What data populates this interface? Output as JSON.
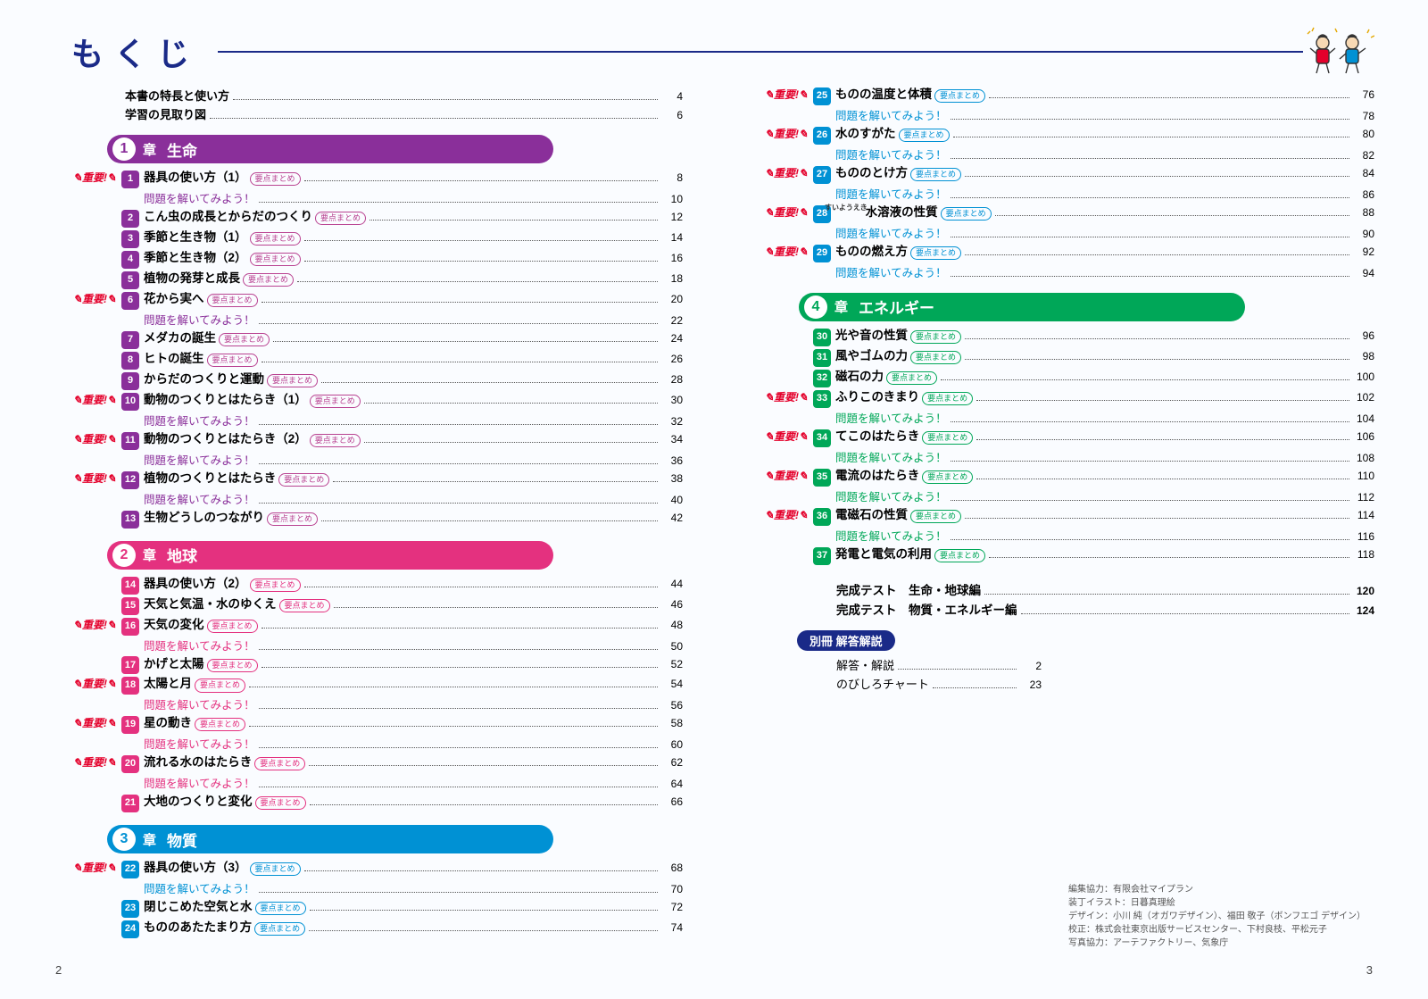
{
  "title": "もくじ",
  "intro": [
    {
      "label": "本書の特長と使い方",
      "page": "4"
    },
    {
      "label": "学習の見取り図",
      "page": "6"
    }
  ],
  "flag_text": "重要!",
  "badge_text": "要点まとめ",
  "practice_text": "問題を解いてみよう！",
  "chapters": [
    {
      "num": "1",
      "kanji": "章",
      "name": "生命",
      "pill_color": "#8a2f9a",
      "bullet_color": "#8a2f9a",
      "badge_color": "#b94291",
      "sub_color": "#8a2f9a",
      "entries": [
        {
          "n": "1",
          "t": "器具の使い方（1）",
          "flag": true,
          "badge": true,
          "page": "8",
          "sub": "10"
        },
        {
          "n": "2",
          "t": "こん虫の成長とからだのつくり",
          "badge": true,
          "page": "12"
        },
        {
          "n": "3",
          "t": "季節と生き物（1）",
          "badge": true,
          "page": "14"
        },
        {
          "n": "4",
          "t": "季節と生き物（2）",
          "badge": true,
          "page": "16"
        },
        {
          "n": "5",
          "t": "植物の発芽と成長",
          "badge": true,
          "page": "18"
        },
        {
          "n": "6",
          "t": "花から実へ",
          "flag": true,
          "badge": true,
          "page": "20",
          "sub": "22"
        },
        {
          "n": "7",
          "t": "メダカの誕生",
          "badge": true,
          "page": "24"
        },
        {
          "n": "8",
          "t": "ヒトの誕生",
          "badge": true,
          "page": "26"
        },
        {
          "n": "9",
          "t": "からだのつくりと運動",
          "badge": true,
          "page": "28"
        },
        {
          "n": "10",
          "t": "動物のつくりとはたらき（1）",
          "flag": true,
          "badge": true,
          "page": "30",
          "sub": "32"
        },
        {
          "n": "11",
          "t": "動物のつくりとはたらき（2）",
          "flag": true,
          "badge": true,
          "page": "34",
          "sub": "36"
        },
        {
          "n": "12",
          "t": "植物のつくりとはたらき",
          "flag": true,
          "badge": true,
          "page": "38",
          "sub": "40"
        },
        {
          "n": "13",
          "t": "生物どうしのつながり",
          "badge": true,
          "page": "42"
        }
      ]
    },
    {
      "num": "2",
      "kanji": "章",
      "name": "地球",
      "pill_color": "#e4317f",
      "bullet_color": "#e4317f",
      "badge_color": "#e4317f",
      "sub_color": "#e4317f",
      "entries": [
        {
          "n": "14",
          "t": "器具の使い方（2）",
          "badge": true,
          "page": "44"
        },
        {
          "n": "15",
          "t": "天気と気温・水のゆくえ",
          "badge": true,
          "page": "46"
        },
        {
          "n": "16",
          "t": "天気の変化",
          "flag": true,
          "badge": true,
          "page": "48",
          "sub": "50"
        },
        {
          "n": "17",
          "t": "かげと太陽",
          "badge": true,
          "page": "52"
        },
        {
          "n": "18",
          "t": "太陽と月",
          "flag": true,
          "badge": true,
          "page": "54",
          "sub": "56"
        },
        {
          "n": "19",
          "t": "星の動き",
          "flag": true,
          "badge": true,
          "page": "58",
          "sub": "60"
        },
        {
          "n": "20",
          "t": "流れる水のはたらき",
          "flag": true,
          "badge": true,
          "page": "62",
          "sub": "64"
        },
        {
          "n": "21",
          "t": "大地のつくりと変化",
          "badge": true,
          "page": "66"
        }
      ]
    },
    {
      "num": "3",
      "kanji": "章",
      "name": "物質",
      "pill_color": "#0091d4",
      "bullet_color": "#0091d4",
      "badge_color": "#0091d4",
      "sub_color": "#0091d4",
      "entries": [
        {
          "n": "22",
          "t": "器具の使い方（3）",
          "flag": true,
          "badge": true,
          "page": "68",
          "sub": "70"
        },
        {
          "n": "23",
          "t": "閉じこめた空気と水",
          "badge": true,
          "page": "72"
        },
        {
          "n": "24",
          "t": "もののあたたまり方",
          "badge": true,
          "page": "74"
        }
      ]
    }
  ],
  "chapters_right_cont": {
    "bullet_color": "#0091d4",
    "badge_color": "#0091d4",
    "sub_color": "#0091d4",
    "entries": [
      {
        "n": "25",
        "t": "ものの温度と体積",
        "flag": true,
        "badge": true,
        "page": "76",
        "sub": "78"
      },
      {
        "n": "26",
        "t": "水のすがた",
        "flag": true,
        "badge": true,
        "page": "80",
        "sub": "82"
      },
      {
        "n": "27",
        "t": "もののとけ方",
        "flag": true,
        "badge": true,
        "page": "84",
        "sub": "86"
      },
      {
        "n": "28",
        "t": "水溶液の性質",
        "ruby": "すいようえき",
        "flag": true,
        "badge": true,
        "page": "88",
        "sub": "90"
      },
      {
        "n": "29",
        "t": "ものの燃え方",
        "flag": true,
        "badge": true,
        "page": "92",
        "sub": "94"
      }
    ]
  },
  "chapter4": {
    "num": "4",
    "kanji": "章",
    "name": "エネルギー",
    "pill_color": "#00a758",
    "bullet_color": "#00a758",
    "badge_color": "#00a758",
    "sub_color": "#00a758",
    "entries": [
      {
        "n": "30",
        "t": "光や音の性質",
        "badge": true,
        "page": "96"
      },
      {
        "n": "31",
        "t": "風やゴムの力",
        "badge": true,
        "page": "98"
      },
      {
        "n": "32",
        "t": "磁石の力",
        "badge": true,
        "page": "100"
      },
      {
        "n": "33",
        "t": "ふりこのきまり",
        "flag": true,
        "badge": true,
        "page": "102",
        "sub": "104"
      },
      {
        "n": "34",
        "t": "てこのはたらき",
        "flag": true,
        "badge": true,
        "page": "106",
        "sub": "108"
      },
      {
        "n": "35",
        "t": "電流のはたらき",
        "flag": true,
        "badge": true,
        "page": "110",
        "sub": "112"
      },
      {
        "n": "36",
        "t": "電磁石の性質",
        "flag": true,
        "badge": true,
        "page": "114",
        "sub": "116"
      },
      {
        "n": "37",
        "t": "発電と電気の利用",
        "badge": true,
        "page": "118"
      }
    ]
  },
  "tests": [
    {
      "label": "完成テスト　生命・地球編",
      "page": "120"
    },
    {
      "label": "完成テスト　物質・エネルギー編",
      "page": "124"
    }
  ],
  "appendix": {
    "title": "別冊 解答解説",
    "lines": [
      {
        "label": "解答・解説",
        "page": "2"
      },
      {
        "label": "のびしろチャート",
        "page": "23"
      }
    ]
  },
  "credits": [
    "編集協力：有限会社マイプラン",
    "装丁イラスト：日暮真理絵",
    "デザイン：小川 純（オガワデザイン）、福田 敬子（ボンフエゴ デザイン）",
    "校正：株式会社東京出版サービスセンター、下村良枝、平松元子",
    "写真協力：アーテファクトリー、気象庁"
  ],
  "page_left": "2",
  "page_right": "3"
}
